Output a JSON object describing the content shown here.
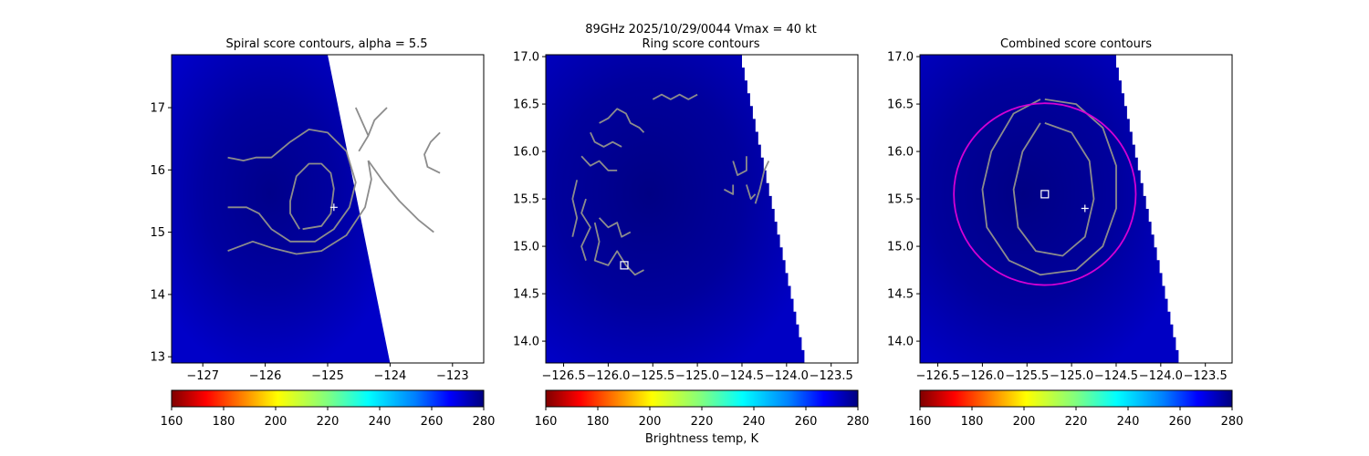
{
  "suptitle": "89GHz  2025/10/29/0044    Vmax = 40 kt",
  "colorbar_label": "Brightness temp, K",
  "colorbar_ticks": [
    "160",
    "180",
    "200",
    "220",
    "240",
    "260",
    "280"
  ],
  "chart_data": [
    {
      "type": "heatmap",
      "title": "Spiral score contours, alpha =  5.5",
      "xlim": [
        -127.5,
        -122.5
      ],
      "ylim": [
        12.9,
        17.85
      ],
      "xticks": [
        -127,
        -126,
        -125,
        -124,
        -123
      ],
      "xtick_labels": [
        "−127",
        "−126",
        "−125",
        "−124",
        "−123"
      ],
      "yticks": [
        13,
        14,
        15,
        16,
        17
      ],
      "ytick_labels": [
        "13",
        "14",
        "15",
        "16",
        "17"
      ],
      "swath_edge": [
        [
          -125.0,
          17.85
        ],
        [
          -124.0,
          12.9
        ]
      ],
      "plus_marker": [
        -124.9,
        15.4
      ],
      "square_marker": null,
      "contours": [
        [
          [
            -125.4,
            15.05
          ],
          [
            -125.1,
            15.1
          ],
          [
            -124.95,
            15.3
          ],
          [
            -124.9,
            15.7
          ],
          [
            -124.95,
            15.95
          ],
          [
            -125.1,
            16.1
          ],
          [
            -125.3,
            16.1
          ],
          [
            -125.5,
            15.9
          ],
          [
            -125.6,
            15.5
          ],
          [
            -125.6,
            15.3
          ],
          [
            -125.45,
            15.05
          ]
        ],
        [
          [
            -126.6,
            15.4
          ],
          [
            -126.3,
            15.4
          ],
          [
            -126.1,
            15.3
          ],
          [
            -125.9,
            15.05
          ],
          [
            -125.6,
            14.85
          ],
          [
            -125.2,
            14.85
          ],
          [
            -124.9,
            15.05
          ],
          [
            -124.65,
            15.4
          ],
          [
            -124.55,
            15.8
          ],
          [
            -124.7,
            16.3
          ],
          [
            -125.0,
            16.6
          ],
          [
            -125.3,
            16.65
          ],
          [
            -125.6,
            16.45
          ],
          [
            -125.9,
            16.2
          ],
          [
            -126.15,
            16.2
          ],
          [
            -126.35,
            16.15
          ],
          [
            -126.6,
            16.2
          ]
        ],
        [
          [
            -126.6,
            14.7
          ],
          [
            -126.2,
            14.85
          ],
          [
            -125.9,
            14.75
          ],
          [
            -125.5,
            14.65
          ],
          [
            -125.1,
            14.7
          ],
          [
            -124.7,
            14.95
          ],
          [
            -124.4,
            15.4
          ],
          [
            -124.3,
            15.85
          ],
          [
            -124.35,
            16.15
          ]
        ],
        [
          [
            -124.35,
            16.15
          ],
          [
            -124.1,
            15.8
          ],
          [
            -123.85,
            15.5
          ],
          [
            -123.55,
            15.2
          ],
          [
            -123.3,
            15.0
          ]
        ],
        [
          [
            -124.5,
            16.3
          ],
          [
            -124.35,
            16.55
          ],
          [
            -124.25,
            16.8
          ],
          [
            -124.05,
            17.0
          ]
        ],
        [
          [
            -124.35,
            16.55
          ],
          [
            -124.55,
            17.0
          ]
        ],
        [
          [
            -123.2,
            16.6
          ],
          [
            -123.35,
            16.45
          ],
          [
            -123.45,
            16.25
          ],
          [
            -123.4,
            16.05
          ],
          [
            -123.2,
            15.95
          ]
        ]
      ]
    },
    {
      "type": "heatmap",
      "title": "Ring score contours",
      "xlim": [
        -126.7,
        -123.2
      ],
      "ylim": [
        13.77,
        17.02
      ],
      "xticks": [
        -126.5,
        -126.0,
        -125.5,
        -125.0,
        -124.5,
        -124.0,
        -123.5
      ],
      "xtick_labels": [
        "−126.5",
        "−126.0",
        "−125.5",
        "−125.0",
        "−124.5",
        "−124.0",
        "−123.5"
      ],
      "yticks": [
        14.0,
        14.5,
        15.0,
        15.5,
        16.0,
        16.5,
        17.0
      ],
      "ytick_labels": [
        "14.0",
        "14.5",
        "15.0",
        "15.5",
        "16.0",
        "16.5",
        "17.0"
      ],
      "swath_step": {
        "lat_top": 17.02,
        "lat_bottom": 13.77,
        "lon_top": -124.5,
        "lon_bottom": -123.8,
        "steps": 24
      },
      "plus_marker": null,
      "square_marker": [
        -125.82,
        14.8
      ],
      "contours": [
        [
          [
            -126.1,
            16.3
          ],
          [
            -126.0,
            16.35
          ],
          [
            -125.9,
            16.45
          ],
          [
            -125.8,
            16.4
          ],
          [
            -125.75,
            16.3
          ],
          [
            -125.65,
            16.25
          ],
          [
            -125.6,
            16.2
          ]
        ],
        [
          [
            -125.5,
            16.55
          ],
          [
            -125.4,
            16.6
          ],
          [
            -125.3,
            16.55
          ],
          [
            -125.2,
            16.6
          ],
          [
            -125.1,
            16.55
          ],
          [
            -125.0,
            16.6
          ]
        ],
        [
          [
            -126.2,
            16.2
          ],
          [
            -126.15,
            16.1
          ],
          [
            -126.05,
            16.05
          ],
          [
            -125.95,
            16.1
          ],
          [
            -125.85,
            16.05
          ]
        ],
        [
          [
            -126.3,
            15.95
          ],
          [
            -126.2,
            15.85
          ],
          [
            -126.1,
            15.9
          ],
          [
            -126.0,
            15.8
          ],
          [
            -125.9,
            15.8
          ]
        ],
        [
          [
            -126.35,
            15.7
          ],
          [
            -126.4,
            15.5
          ],
          [
            -126.35,
            15.3
          ],
          [
            -126.4,
            15.1
          ]
        ],
        [
          [
            -126.25,
            15.5
          ],
          [
            -126.3,
            15.35
          ],
          [
            -126.2,
            15.2
          ],
          [
            -126.3,
            15.0
          ],
          [
            -126.25,
            14.85
          ]
        ],
        [
          [
            -126.15,
            15.25
          ],
          [
            -126.1,
            15.05
          ],
          [
            -126.15,
            14.85
          ],
          [
            -126.0,
            14.8
          ],
          [
            -125.9,
            14.95
          ],
          [
            -125.8,
            14.8
          ],
          [
            -125.7,
            14.7
          ],
          [
            -125.6,
            14.75
          ]
        ],
        [
          [
            -126.1,
            15.3
          ],
          [
            -126.0,
            15.2
          ],
          [
            -125.9,
            15.25
          ],
          [
            -125.85,
            15.1
          ],
          [
            -125.75,
            15.15
          ]
        ],
        [
          [
            -124.6,
            15.9
          ],
          [
            -124.55,
            15.75
          ],
          [
            -124.45,
            15.8
          ],
          [
            -124.45,
            15.95
          ]
        ],
        [
          [
            -124.45,
            15.65
          ],
          [
            -124.4,
            15.5
          ],
          [
            -124.35,
            15.55
          ]
        ],
        [
          [
            -124.35,
            15.45
          ],
          [
            -124.3,
            15.6
          ],
          [
            -124.25,
            15.8
          ],
          [
            -124.2,
            15.9
          ]
        ],
        [
          [
            -124.7,
            15.6
          ],
          [
            -124.6,
            15.55
          ],
          [
            -124.6,
            15.65
          ]
        ]
      ]
    },
    {
      "type": "heatmap",
      "title": "Combined score contours",
      "xlim": [
        -126.7,
        -123.2
      ],
      "ylim": [
        13.77,
        17.02
      ],
      "xticks": [
        -126.5,
        -126.0,
        -125.5,
        -125.0,
        -124.5,
        -124.0,
        -123.5
      ],
      "xtick_labels": [
        "−126.5",
        "−126.0",
        "−125.5",
        "−125.0",
        "−124.5",
        "−124.0",
        "−123.5"
      ],
      "yticks": [
        14.0,
        14.5,
        15.0,
        15.5,
        16.0,
        16.5,
        17.0
      ],
      "ytick_labels": [
        "14.0",
        "14.5",
        "15.0",
        "15.5",
        "16.0",
        "16.5",
        "17.0"
      ],
      "swath_step": {
        "lat_top": 17.02,
        "lat_bottom": 13.77,
        "lon_top": -124.5,
        "lon_bottom": -123.8,
        "steps": 24
      },
      "plus_marker": [
        -124.85,
        15.4
      ],
      "square_marker": [
        -125.3,
        15.55
      ],
      "circle": {
        "center": [
          -125.3,
          15.55
        ],
        "radius_deg": 1.02
      },
      "contours": [
        [
          [
            -125.3,
            16.3
          ],
          [
            -125.0,
            16.2
          ],
          [
            -124.8,
            15.9
          ],
          [
            -124.75,
            15.5
          ],
          [
            -124.85,
            15.1
          ],
          [
            -125.1,
            14.9
          ],
          [
            -125.4,
            14.95
          ],
          [
            -125.6,
            15.2
          ],
          [
            -125.65,
            15.6
          ],
          [
            -125.55,
            16.0
          ],
          [
            -125.35,
            16.3
          ]
        ],
        [
          [
            -125.3,
            16.55
          ],
          [
            -124.95,
            16.5
          ],
          [
            -124.65,
            16.25
          ],
          [
            -124.5,
            15.85
          ],
          [
            -124.5,
            15.4
          ],
          [
            -124.65,
            15.0
          ],
          [
            -124.95,
            14.75
          ],
          [
            -125.35,
            14.7
          ],
          [
            -125.7,
            14.85
          ],
          [
            -125.95,
            15.2
          ],
          [
            -126.0,
            15.6
          ],
          [
            -125.9,
            16.0
          ],
          [
            -125.65,
            16.4
          ],
          [
            -125.35,
            16.55
          ]
        ]
      ]
    }
  ]
}
